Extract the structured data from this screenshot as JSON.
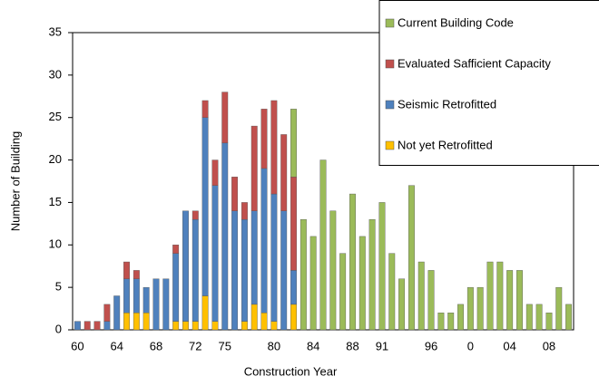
{
  "chart_data": {
    "type": "stacked-bar",
    "x_label": "Construction Year",
    "y_label": "Number of Building",
    "categories": [
      "60",
      null,
      null,
      null,
      "64",
      null,
      null,
      null,
      "68",
      null,
      null,
      null,
      "72",
      null,
      null,
      "75",
      null,
      null,
      null,
      null,
      "80",
      null,
      null,
      null,
      "84",
      null,
      null,
      null,
      "88",
      null,
      null,
      "91",
      null,
      null,
      null,
      null,
      "96",
      null,
      null,
      null,
      "0",
      null,
      null,
      null,
      "04",
      null,
      null,
      null,
      "08",
      null,
      null
    ],
    "series": [
      {
        "name": "Not yet Retrofitted",
        "color": "#ffc000",
        "values": [
          0,
          0,
          0,
          0,
          0,
          2,
          2,
          2,
          0,
          0,
          1,
          1,
          1,
          4,
          1,
          0,
          0,
          1,
          3,
          2,
          1,
          0,
          3,
          0,
          0,
          0,
          0,
          0,
          0,
          0,
          0,
          0,
          0,
          0,
          0,
          0,
          0,
          0,
          0,
          0,
          0,
          0,
          0,
          0,
          0,
          0,
          0,
          0,
          0,
          0,
          0
        ]
      },
      {
        "name": "Seismic Retrofitted",
        "color": "#4f81bd",
        "values": [
          1,
          0,
          0,
          1,
          4,
          4,
          4,
          3,
          6,
          6,
          8,
          13,
          12,
          21,
          16,
          22,
          14,
          12,
          11,
          17,
          15,
          14,
          4,
          0,
          0,
          0,
          0,
          0,
          0,
          0,
          0,
          0,
          0,
          0,
          0,
          0,
          0,
          0,
          0,
          0,
          0,
          0,
          0,
          0,
          0,
          0,
          0,
          0,
          0,
          0,
          0
        ]
      },
      {
        "name": "Evaluated Safficient Capacity",
        "color": "#c0504d",
        "values": [
          0,
          1,
          1,
          2,
          0,
          2,
          1,
          0,
          0,
          0,
          1,
          0,
          1,
          2,
          3,
          6,
          4,
          2,
          10,
          7,
          11,
          9,
          11,
          0,
          0,
          0,
          0,
          0,
          0,
          0,
          0,
          0,
          0,
          0,
          0,
          0,
          0,
          0,
          0,
          0,
          0,
          0,
          0,
          0,
          0,
          0,
          0,
          0,
          0,
          0,
          0
        ]
      },
      {
        "name": "Current Building Code",
        "color": "#9bbb59",
        "values": [
          0,
          0,
          0,
          0,
          0,
          0,
          0,
          0,
          0,
          0,
          0,
          0,
          0,
          0,
          0,
          0,
          0,
          0,
          0,
          0,
          0,
          0,
          8,
          13,
          11,
          20,
          14,
          9,
          16,
          11,
          13,
          15,
          9,
          6,
          17,
          8,
          7,
          2,
          2,
          3,
          5,
          5,
          8,
          8,
          7,
          7,
          3,
          3,
          2,
          5,
          3
        ]
      }
    ],
    "ylim": [
      0,
      35
    ],
    "yticks": [
      0,
      5,
      10,
      15,
      20,
      25,
      30,
      35
    ],
    "grid": false
  }
}
